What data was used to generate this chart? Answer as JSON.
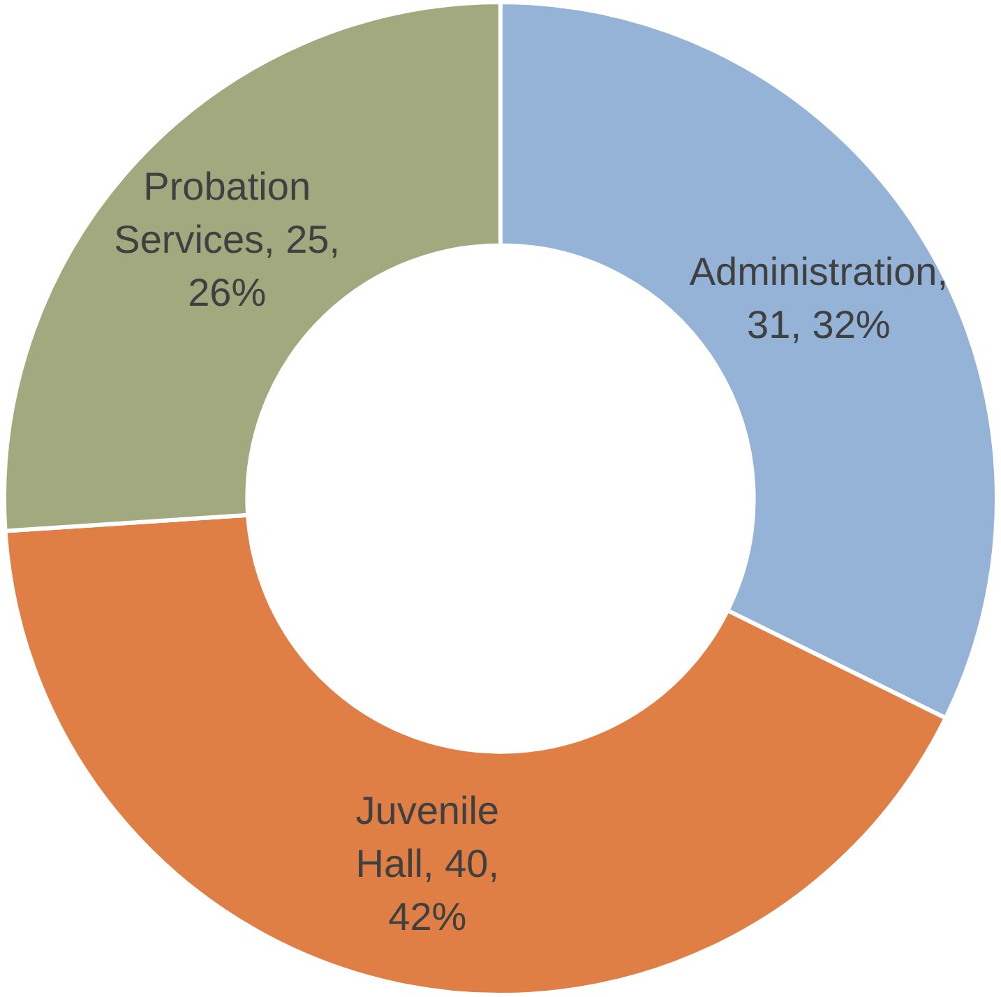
{
  "chart_data": {
    "type": "donut",
    "categories": [
      "Administration",
      "Juvenile Hall",
      "Probation Services"
    ],
    "values": [
      31,
      40,
      25
    ],
    "colors": [
      "#95b3d7",
      "#e07f45",
      "#a3a97e"
    ],
    "value_labels": [
      ", 31, 32%",
      ", 40, 42%",
      ", 25, 26%"
    ],
    "legend": false
  }
}
